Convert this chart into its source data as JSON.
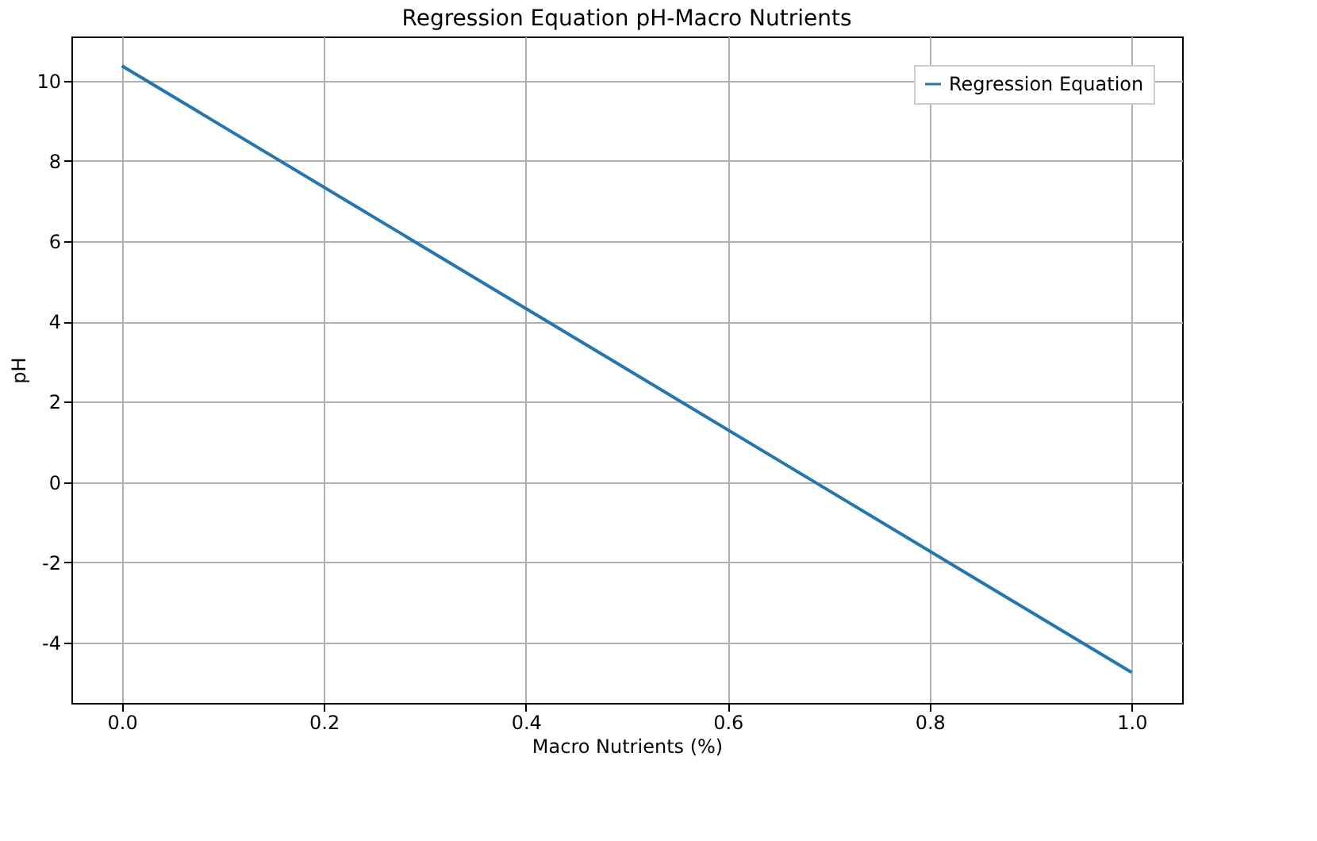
{
  "chart_data": {
    "type": "line",
    "title": "Regression Equation pH-Macro Nutrients",
    "xlabel": "Macro Nutrients (%)",
    "ylabel": "pH",
    "x": [
      0,
      1
    ],
    "series": [
      {
        "name": "Regression Equation",
        "color": "#1f77b4",
        "values": [
          10.37,
          -4.74
        ]
      }
    ],
    "xlim": [
      -0.05,
      1.05
    ],
    "xticks": [
      {
        "value": 0,
        "label": "0.0"
      },
      0.2,
      0.4,
      0.6,
      0.8,
      {
        "value": 1,
        "label": "1.0"
      }
    ],
    "ylim": [
      -5.5,
      11.1
    ],
    "yticks": [
      -4,
      -2,
      0,
      2,
      4,
      6,
      8,
      10
    ],
    "grid": true,
    "legend": "top right",
    "line_style": "solid",
    "marker": "none"
  }
}
